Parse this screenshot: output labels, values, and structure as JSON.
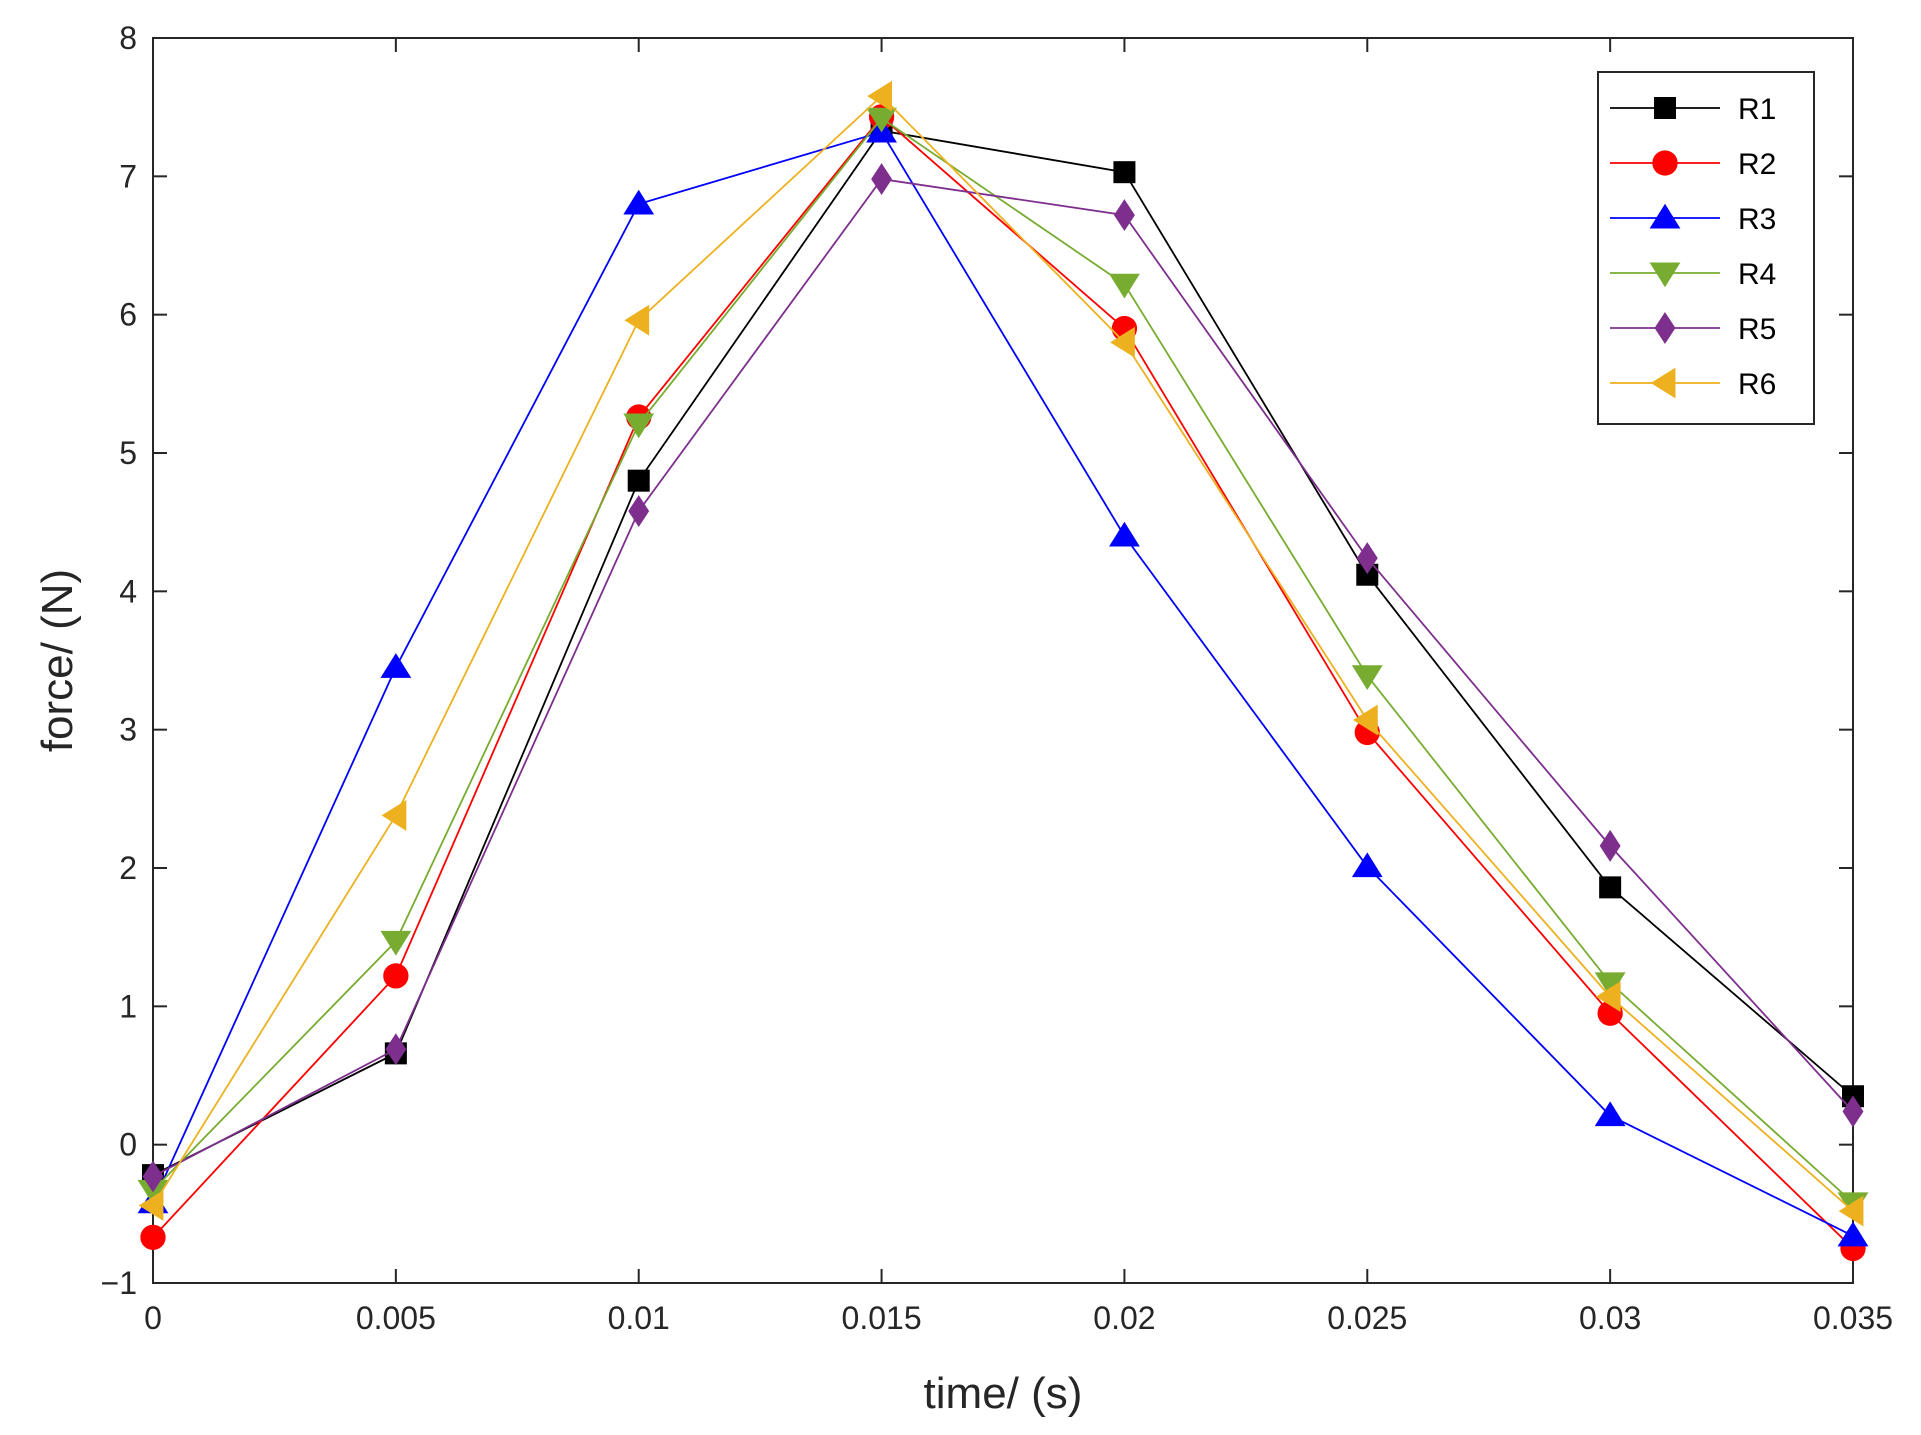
{
  "chart_data": {
    "type": "line",
    "title": "",
    "xlabel": "time/ (s)",
    "ylabel": "force/ (N)",
    "xlim": [
      0,
      0.035
    ],
    "ylim": [
      -1,
      8
    ],
    "x": [
      0,
      0.005,
      0.01,
      0.015,
      0.02,
      0.025,
      0.03,
      0.035
    ],
    "xticks": [
      0,
      0.005,
      0.01,
      0.015,
      0.02,
      0.025,
      0.03,
      0.035
    ],
    "xtick_labels": [
      "0",
      "0.005",
      "0.01",
      "0.015",
      "0.02",
      "0.025",
      "0.03",
      "0.035"
    ],
    "yticks": [
      -1,
      0,
      1,
      2,
      3,
      4,
      5,
      6,
      7,
      8
    ],
    "ytick_labels": [
      "−1",
      "0",
      "1",
      "2",
      "3",
      "4",
      "5",
      "6",
      "7",
      "8"
    ],
    "grid": false,
    "legend_position": "top-right",
    "series": [
      {
        "name": "R1",
        "color": "#000000",
        "marker": "square",
        "values": [
          -0.22,
          0.66,
          4.8,
          7.33,
          7.03,
          4.12,
          1.86,
          0.35
        ]
      },
      {
        "name": "R2",
        "color": "#ff0000",
        "marker": "circle",
        "values": [
          -0.67,
          1.22,
          5.26,
          7.43,
          5.9,
          2.98,
          0.95,
          -0.75
        ]
      },
      {
        "name": "R3",
        "color": "#0000ff",
        "marker": "triangle-up",
        "values": [
          -0.42,
          3.45,
          6.8,
          7.32,
          4.4,
          2.01,
          0.21,
          -0.66
        ]
      },
      {
        "name": "R4",
        "color": "#77ac30",
        "marker": "triangle-down",
        "values": [
          -0.33,
          1.47,
          5.21,
          7.42,
          6.22,
          3.39,
          1.17,
          -0.42
        ]
      },
      {
        "name": "R5",
        "color": "#7e2f8e",
        "marker": "diamond",
        "values": [
          -0.23,
          0.69,
          4.58,
          6.98,
          6.72,
          4.24,
          2.16,
          0.24
        ]
      },
      {
        "name": "R6",
        "color": "#edb120",
        "marker": "triangle-left",
        "values": [
          -0.44,
          2.38,
          5.96,
          7.58,
          5.8,
          3.07,
          1.07,
          -0.48
        ]
      }
    ]
  }
}
